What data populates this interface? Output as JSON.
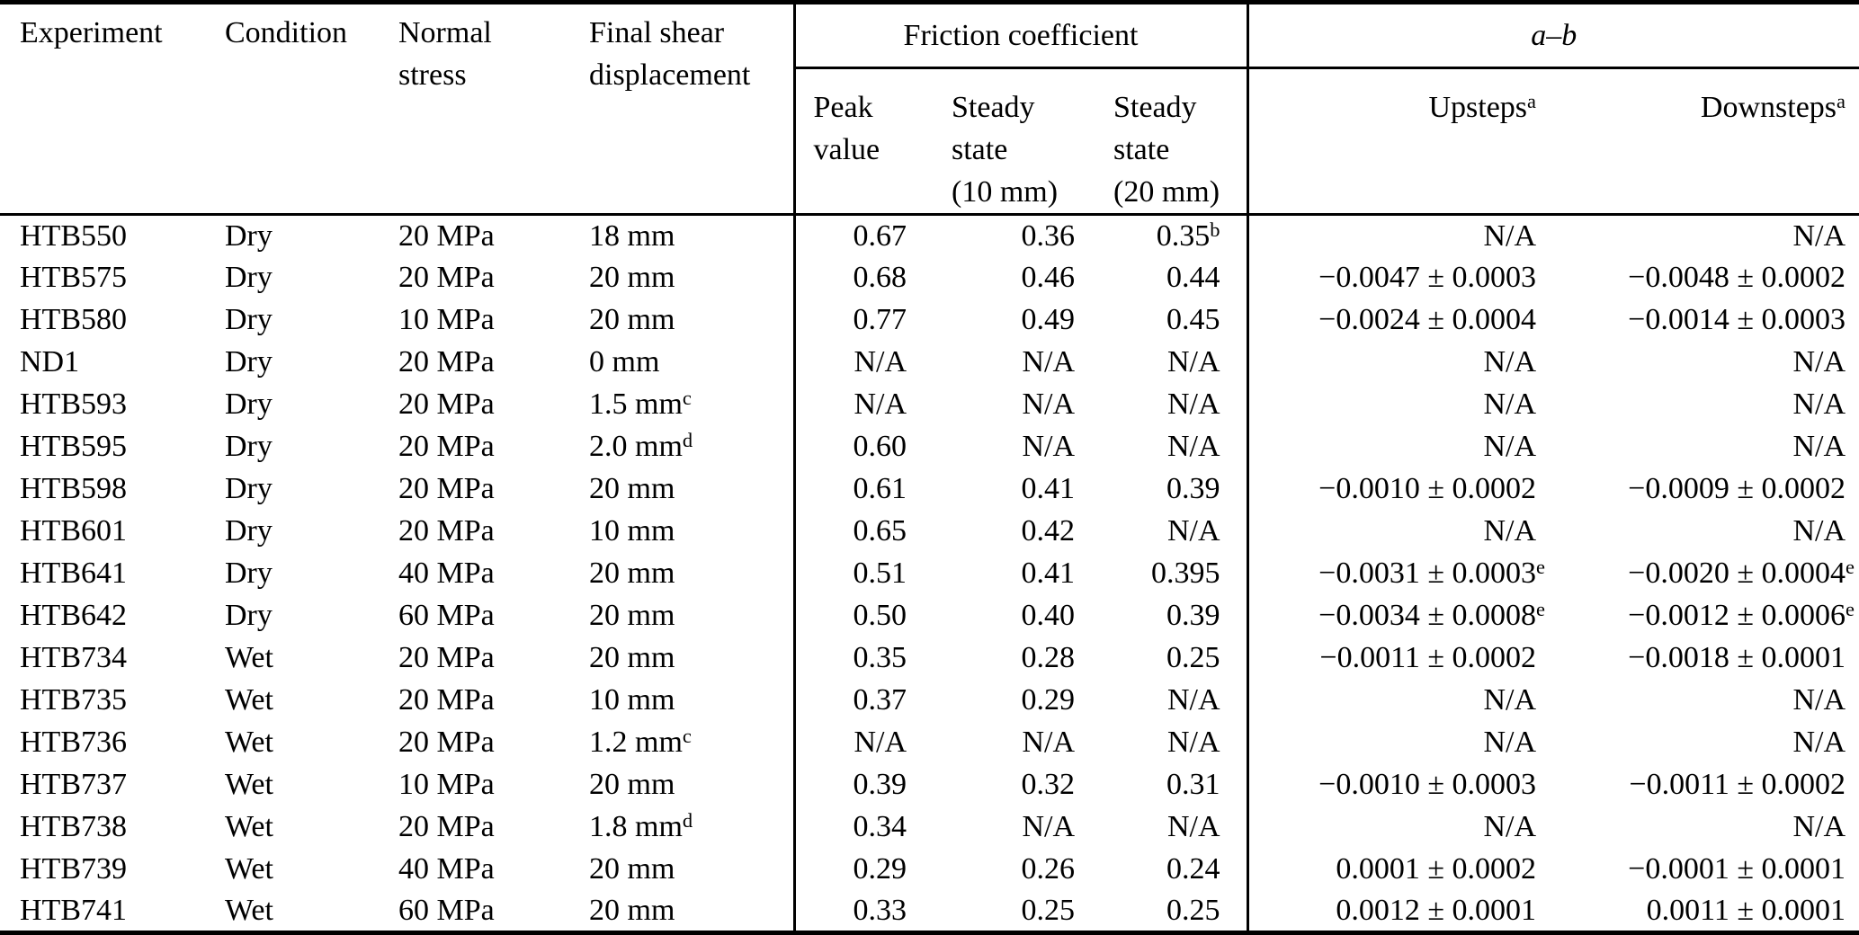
{
  "colors": {
    "text": "#000000",
    "background": "#ffffff",
    "rule": "#000000"
  },
  "table": {
    "headers": {
      "experiment": "Experiment",
      "condition": "Condition",
      "normal_stress": "Normal\nstress",
      "final_shear_displacement": "Final shear\ndisplacement",
      "friction_group": "Friction coefficient",
      "ab_group": "a–b",
      "peak": "Peak\nvalue",
      "ss10": "Steady\nstate\n(10 mm)",
      "ss20": "Steady\nstate\n(20 mm)",
      "upsteps": "Upsteps^a",
      "downsteps": "Downsteps^a"
    },
    "rows": [
      [
        "HTB550",
        "Dry",
        "20 MPa",
        "18 mm",
        "0.67",
        "0.36",
        "0.35^b",
        "N/A",
        "N/A"
      ],
      [
        "HTB575",
        "Dry",
        "20 MPa",
        "20 mm",
        "0.68",
        "0.46",
        "0.44",
        "−0.0047 ± 0.0003",
        "−0.0048 ± 0.0002"
      ],
      [
        "HTB580",
        "Dry",
        "10 MPa",
        "20 mm",
        "0.77",
        "0.49",
        "0.45",
        "−0.0024 ± 0.0004",
        "−0.0014 ± 0.0003"
      ],
      [
        "ND1",
        "Dry",
        "20 MPa",
        "0 mm",
        "N/A",
        "N/A",
        "N/A",
        "N/A",
        "N/A"
      ],
      [
        "HTB593",
        "Dry",
        "20 MPa",
        "1.5 mm^c",
        "N/A",
        "N/A",
        "N/A",
        "N/A",
        "N/A"
      ],
      [
        "HTB595",
        "Dry",
        "20 MPa",
        "2.0 mm^d",
        "0.60",
        "N/A",
        "N/A",
        "N/A",
        "N/A"
      ],
      [
        "HTB598",
        "Dry",
        "20 MPa",
        "20 mm",
        "0.61",
        "0.41",
        "0.39",
        "−0.0010 ± 0.0002",
        "−0.0009 ± 0.0002"
      ],
      [
        "HTB601",
        "Dry",
        "20 MPa",
        "10 mm",
        "0.65",
        "0.42",
        "N/A",
        "N/A",
        "N/A"
      ],
      [
        "HTB641",
        "Dry",
        "40 MPa",
        "20 mm",
        "0.51",
        "0.41",
        "0.395",
        "−0.0031 ± 0.0003^e",
        "−0.0020 ± 0.0004^e"
      ],
      [
        "HTB642",
        "Dry",
        "60 MPa",
        "20 mm",
        "0.50",
        "0.40",
        "0.39",
        "−0.0034 ± 0.0008^e",
        "−0.0012 ± 0.0006^e"
      ],
      [
        "HTB734",
        "Wet",
        "20 MPa",
        "20 mm",
        "0.35",
        "0.28",
        "0.25",
        "−0.0011 ± 0.0002",
        "−0.0018 ± 0.0001"
      ],
      [
        "HTB735",
        "Wet",
        "20 MPa",
        "10 mm",
        "0.37",
        "0.29",
        "N/A",
        "N/A",
        "N/A"
      ],
      [
        "HTB736",
        "Wet",
        "20 MPa",
        "1.2 mm^c",
        "N/A",
        "N/A",
        "N/A",
        "N/A",
        "N/A"
      ],
      [
        "HTB737",
        "Wet",
        "10 MPa",
        "20 mm",
        "0.39",
        "0.32",
        "0.31",
        "−0.0010 ± 0.0003",
        "−0.0011 ± 0.0002"
      ],
      [
        "HTB738",
        "Wet",
        "20 MPa",
        "1.8 mm^d",
        "0.34",
        "N/A",
        "N/A",
        "N/A",
        "N/A"
      ],
      [
        "HTB739",
        "Wet",
        "40 MPa",
        "20 mm",
        "0.29",
        "0.26",
        "0.24",
        "0.0001 ± 0.0002",
        "−0.0001 ± 0.0001"
      ],
      [
        "HTB741",
        "Wet",
        "60 MPa",
        "20 mm",
        "0.33",
        "0.25",
        "0.25",
        "0.0012 ± 0.0001",
        "0.0011 ± 0.0001"
      ]
    ]
  }
}
